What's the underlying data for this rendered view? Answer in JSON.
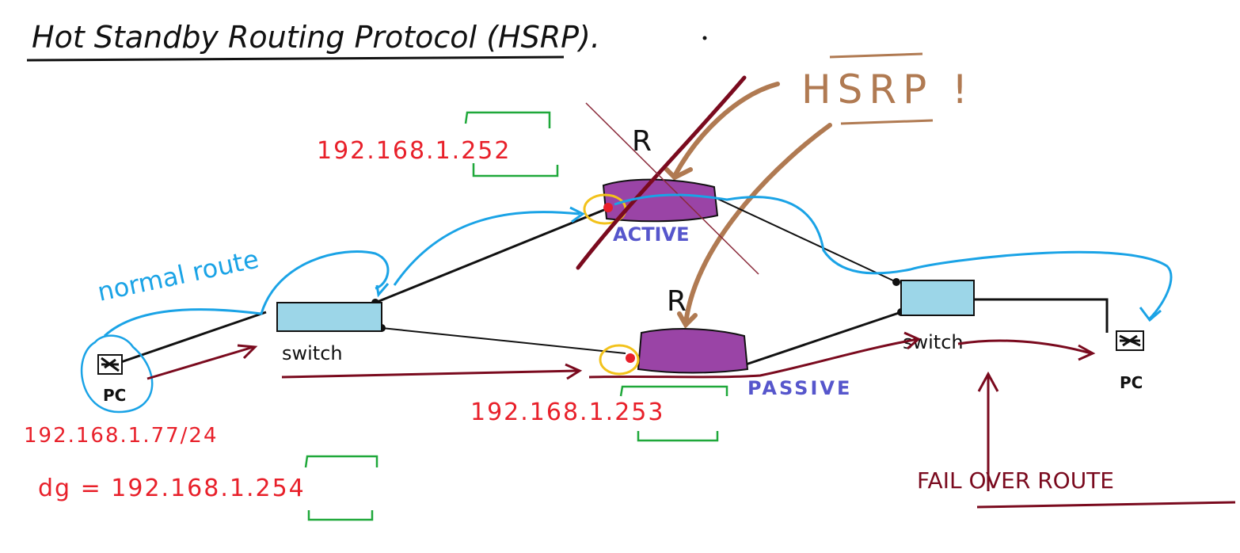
{
  "title": "Hot Standby Routing Protocol (HSRP).",
  "hsrp_label": "HSRP !",
  "router_top": {
    "label": "R",
    "state": "ACTIVE",
    "ip": "192.168.1.252"
  },
  "router_bottom": {
    "label": "R",
    "state": "PASSIVE",
    "ip": "192.168.1.253"
  },
  "left_switch": {
    "label": "switch"
  },
  "right_switch": {
    "label": "switch"
  },
  "left_pc": {
    "label": "PC",
    "ip": "192.168.1.77/24",
    "default_gateway": "dg = 192.168.1.254"
  },
  "right_pc": {
    "label": "PC"
  },
  "normal_route_label": "normal route",
  "failover_label": "FAIL OVER ROUTE",
  "colors": {
    "ink": "#111111",
    "ip_red": "#e8202a",
    "state_blue": "#5656cc",
    "normal_route_cyan": "#1aa3e6",
    "failover_maroon": "#7a0a1e",
    "hsrp_brown": "#b07a52",
    "router_fill": "#9a44a6",
    "switch_fill": "#9cd6e8",
    "bracket_green": "#1fa83a",
    "highlight_yellow": "#f2c21b"
  }
}
